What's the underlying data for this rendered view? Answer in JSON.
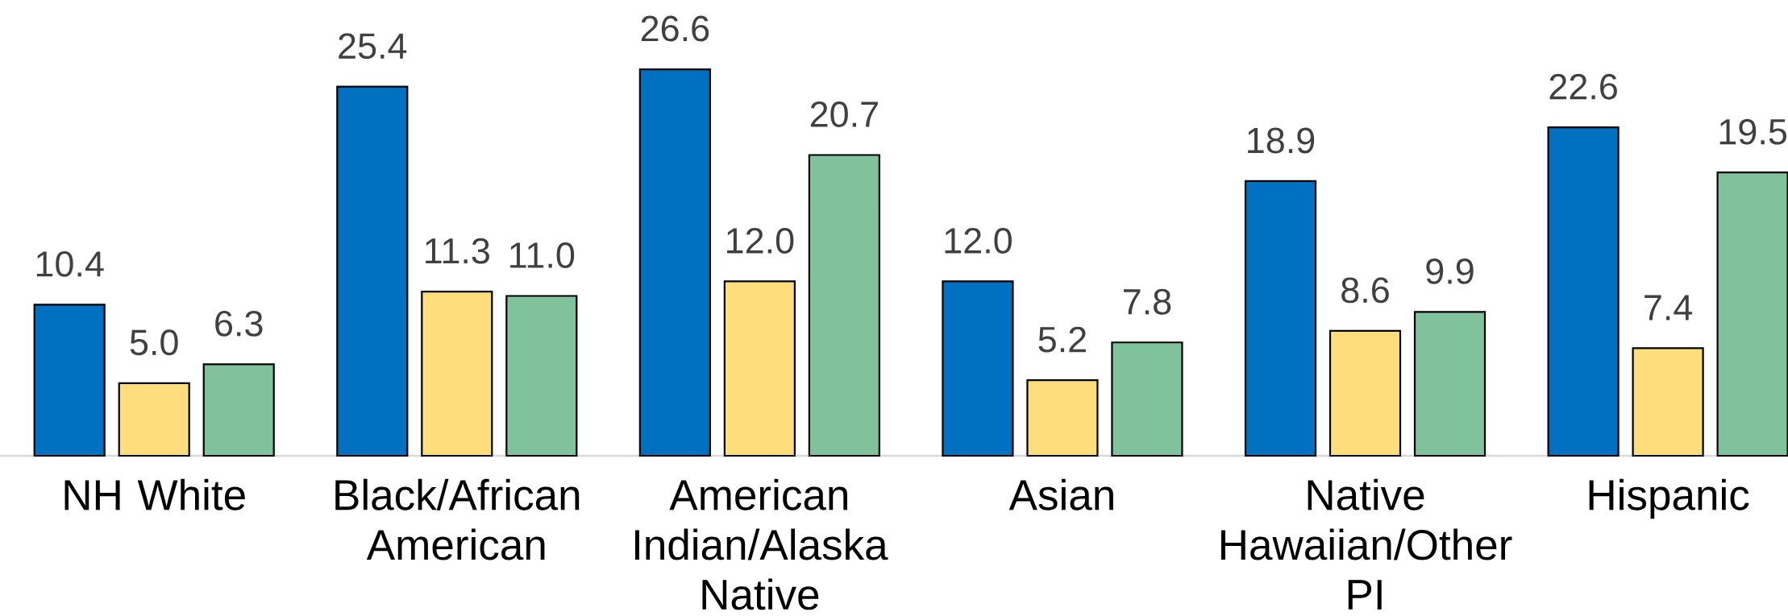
{
  "chart_data": {
    "type": "bar",
    "categories": [
      "NH White",
      "Black/African American",
      "American Indian/Alaska Native",
      "Asian",
      "Native Hawaiian/Other PI",
      "Hispanic"
    ],
    "series": [
      {
        "color": "#0070c0",
        "values": [
          10.4,
          25.4,
          26.6,
          12.0,
          18.9,
          22.6
        ],
        "value_labels": [
          "10.4",
          "25.4",
          "26.6",
          "12.0",
          "18.9",
          "22.6"
        ]
      },
      {
        "color": "#fedd7c",
        "values": [
          5.0,
          11.3,
          12.0,
          5.2,
          8.6,
          7.4
        ],
        "value_labels": [
          "5.0",
          "11.3",
          "12.0",
          "5.2",
          "8.6",
          "7.4"
        ]
      },
      {
        "color": "#7fc29b",
        "values": [
          6.3,
          11.0,
          20.7,
          7.8,
          9.9,
          19.5
        ],
        "value_labels": [
          "6.3",
          "11.0",
          "20.7",
          "7.8",
          "9.9",
          "19.5"
        ]
      }
    ]
  }
}
